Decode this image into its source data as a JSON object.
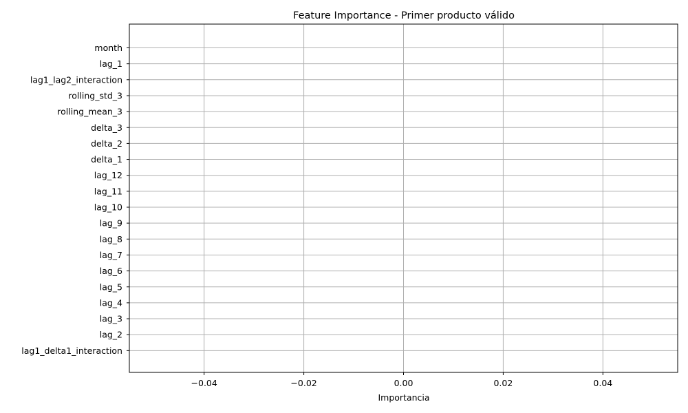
{
  "chart_data": {
    "type": "bar",
    "orientation": "horizontal",
    "title": "Feature Importance - Primer producto válido",
    "xlabel": "Importancia",
    "ylabel": "",
    "xlim": [
      -0.055,
      0.055
    ],
    "xticks": [
      -0.04,
      -0.02,
      0.0,
      0.02,
      0.04
    ],
    "xtick_labels": [
      "−0.04",
      "−0.02",
      "0.00",
      "0.02",
      "0.04"
    ],
    "grid": true,
    "categories": [
      "month",
      "lag_1",
      "lag1_lag2_interaction",
      "rolling_std_3",
      "rolling_mean_3",
      "delta_3",
      "delta_2",
      "delta_1",
      "lag_12",
      "lag_11",
      "lag_10",
      "lag_9",
      "lag_8",
      "lag_7",
      "lag_6",
      "lag_5",
      "lag_4",
      "lag_3",
      "lag_2",
      "lag1_delta1_interaction"
    ],
    "values": [
      0,
      0,
      0,
      0,
      0,
      0,
      0,
      0,
      0,
      0,
      0,
      0,
      0,
      0,
      0,
      0,
      0,
      0,
      0,
      0
    ],
    "colors": {
      "bar": "#1f77b4",
      "grid": "#b0b0b0",
      "axis": "#000000"
    }
  }
}
